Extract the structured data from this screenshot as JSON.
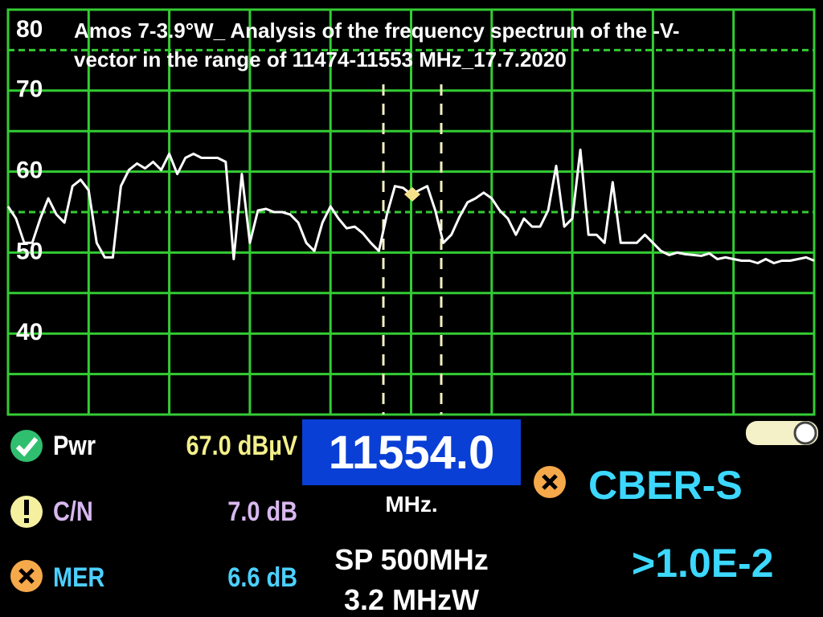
{
  "chart_data": {
    "type": "line",
    "title": "Amos 7-3.9°W_ Analysis of the frequency spectrum of the -V- vector in the range of 11474-11553 MHz_17.7.2020",
    "values": [
      55.7,
      54.2,
      51.2,
      51.2,
      54.2,
      56.7,
      54.7,
      53.7,
      58.2,
      59.0,
      57.7,
      51.2,
      49.4,
      49.4,
      58.2,
      60.2,
      61.0,
      60.4,
      61.2,
      60.2,
      62.2,
      59.7,
      61.7,
      62.2,
      61.7,
      61.7,
      61.7,
      61.2,
      49.2,
      59.7,
      51.2,
      55.2,
      55.4,
      55.0,
      55.0,
      54.7,
      53.7,
      51.2,
      50.2,
      53.7,
      55.7,
      54.2,
      53.0,
      53.2,
      52.4,
      51.2,
      50.2,
      54.7,
      58.2,
      58.0,
      57.2,
      57.7,
      58.2,
      55.2,
      51.2,
      52.2,
      54.4,
      56.2,
      56.7,
      57.4,
      56.7,
      55.2,
      54.2,
      52.2,
      54.2,
      53.2,
      53.2,
      55.2,
      60.7,
      53.2,
      54.2,
      62.7,
      52.2,
      52.2,
      51.2,
      58.7,
      51.2,
      51.2,
      51.2,
      52.2,
      51.2,
      50.2,
      49.7,
      50.0,
      49.8,
      49.7,
      49.6,
      49.9,
      49.2,
      49.4,
      49.2,
      49.0,
      49.0,
      48.7,
      49.2,
      48.7,
      49.0,
      49.0,
      49.2,
      49.4,
      49.0
    ],
    "color": "#ffffff",
    "marker_value": 57.2,
    "ylim": [
      30,
      80
    ],
    "yticks": [
      40,
      50,
      60,
      70,
      80
    ],
    "minor_yticks": [
      35,
      45,
      55,
      65,
      75
    ],
    "grid": true,
    "grid_color": "#33cc33"
  },
  "readouts": {
    "pwr": {
      "label": "Pwr",
      "value": "67.0 dBµV"
    },
    "cn": {
      "label": "C/N",
      "value": "7.0 dB"
    },
    "mer": {
      "label": "MER",
      "value": "6.6 dB"
    },
    "frequency": "11554.0",
    "frequency_unit": "MHz.",
    "span": "SP 500MHz",
    "rbw": "3.2 MHzW",
    "mode": "CBER-S",
    "ber": ">1.0E-2"
  }
}
